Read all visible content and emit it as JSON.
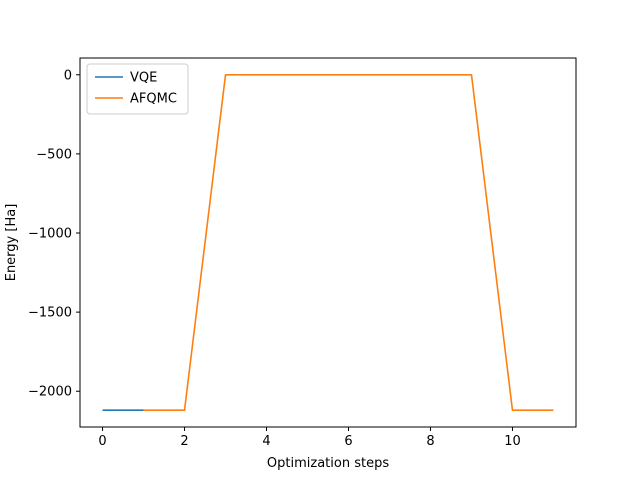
{
  "chart_data": {
    "type": "line",
    "title": "",
    "xlabel": "Optimization steps",
    "ylabel": "Energy [Ha]",
    "xlim": [
      -0.55,
      11.55
    ],
    "ylim": [
      -2226,
      106
    ],
    "x_ticks": [
      0,
      2,
      4,
      6,
      8,
      10
    ],
    "x_tick_labels": [
      "0",
      "2",
      "4",
      "6",
      "8",
      "10"
    ],
    "y_ticks": [
      0,
      -500,
      -1000,
      -1500,
      -2000
    ],
    "y_tick_labels": [
      "0",
      "−500",
      "−1000",
      "−1500",
      "−2000"
    ],
    "grid": false,
    "legend_position": "upper-left",
    "series": [
      {
        "name": "VQE",
        "color": "#1f77b4",
        "x": [
          0,
          1
        ],
        "y": [
          -2120,
          -2120
        ]
      },
      {
        "name": "AFQMC",
        "color": "#ff7f0e",
        "x": [
          1,
          2,
          3,
          4,
          5,
          6,
          7,
          8,
          9,
          10,
          11
        ],
        "y": [
          -2120,
          -2120,
          0,
          0,
          0,
          0,
          0,
          0,
          0,
          -2120,
          -2120
        ]
      }
    ]
  }
}
